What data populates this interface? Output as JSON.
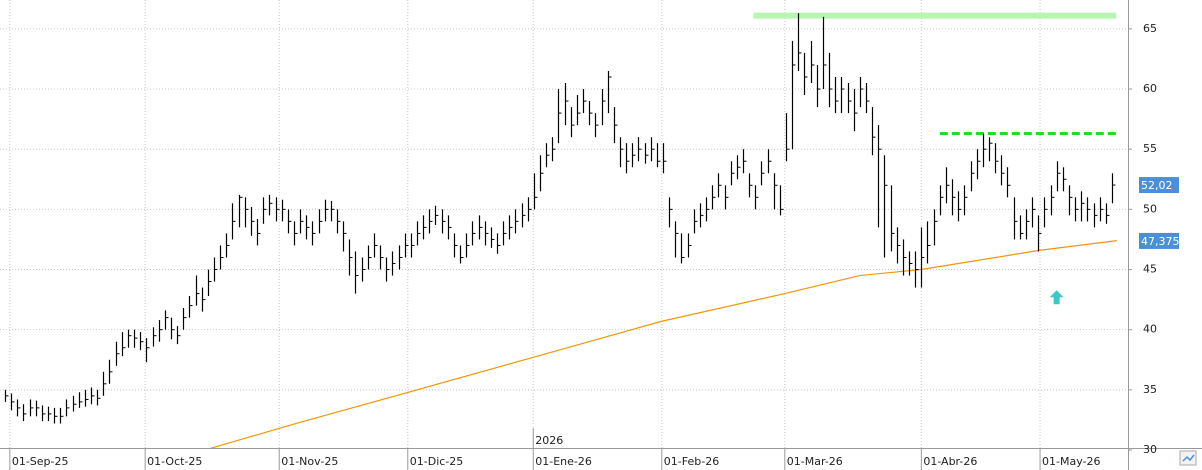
{
  "chart_data": {
    "type": "ohlc",
    "color": "#000000",
    "xlim": [
      -0.8,
      182.6
    ],
    "ylim": [
      30,
      67.4
    ],
    "yticks": [
      30,
      35,
      40,
      45,
      50,
      55,
      60,
      65
    ],
    "xticks": [
      {
        "value": 0.8,
        "label": "01-Sep-25"
      },
      {
        "value": 22.8,
        "label": "01-Oct-25"
      },
      {
        "value": 44.6,
        "label": "01-Nov-25"
      },
      {
        "value": 65.5,
        "label": "01-Dic-25"
      },
      {
        "value": 85.9,
        "label": "01-Ene-26"
      },
      {
        "value": 106.8,
        "label": "01-Feb-26"
      },
      {
        "value": 126.8,
        "label": "01-Mar-26"
      },
      {
        "value": 149,
        "label": "01-Abr-26"
      },
      {
        "value": 168.3,
        "label": "01-May-26"
      }
    ],
    "year_marker": {
      "value": 85.9,
      "label": "2026"
    },
    "grid": true,
    "highs": [
      35,
      34.7,
      34.2,
      33.8,
      34.2,
      34.1,
      33.7,
      33.6,
      33.5,
      33.5,
      34.2,
      34.5,
      34.8,
      35,
      35.2,
      35,
      36.5,
      37.5,
      39,
      39.8,
      40,
      40,
      39.8,
      39.3,
      40.2,
      40.8,
      41.6,
      41,
      40.3,
      41.8,
      42.8,
      44.5,
      43.5,
      45,
      46,
      47,
      48,
      50.5,
      51.2,
      51,
      50.2,
      49.2,
      51,
      51.2,
      51,
      50.8,
      50,
      49,
      50,
      49.5,
      49,
      50,
      50.8,
      50.7,
      50,
      49,
      47.5,
      46.5,
      46,
      47,
      48,
      47,
      46,
      46.5,
      47,
      48,
      48,
      49,
      49.5,
      50,
      50.3,
      50,
      49.5,
      48,
      47,
      48,
      49,
      49.5,
      49,
      48.5,
      48,
      49,
      49.5,
      50,
      50.5,
      51,
      53,
      54.5,
      55.5,
      56,
      60,
      60.5,
      58.5,
      59.5,
      60,
      59,
      58,
      60,
      61.5,
      58.5,
      56,
      55.5,
      55.5,
      56,
      55.5,
      56,
      55.5,
      55.5,
      51,
      49,
      48,
      48,
      50,
      50.5,
      51,
      52,
      53,
      52,
      54,
      54.5,
      55,
      53,
      52,
      54,
      55,
      53,
      52,
      58,
      64,
      66.3,
      63,
      64,
      62,
      66,
      63,
      61,
      61,
      60.5,
      60,
      61,
      60.5,
      58.5,
      57,
      54.5,
      52,
      48.5,
      47.5,
      46.5,
      46.5,
      48.5,
      49,
      50,
      52,
      53.5,
      52.5,
      51.5,
      52,
      54,
      55,
      56.3,
      56,
      55.5,
      54.5,
      53.5,
      51,
      49.5,
      50,
      51,
      49.5,
      51,
      52,
      54,
      53.5,
      52,
      51,
      51.5,
      51,
      50.5,
      51,
      50.5,
      53
    ],
    "lows": [
      34,
      33.3,
      32.8,
      32.4,
      32.8,
      32.8,
      32.4,
      32.4,
      32.2,
      32.2,
      32.8,
      33.2,
      33.5,
      33.6,
      33.8,
      33.7,
      34.5,
      35.5,
      37,
      37.8,
      38.5,
      38.5,
      38.3,
      37.3,
      38.6,
      39,
      40,
      39.2,
      38.8,
      40,
      41,
      42,
      41.5,
      42.8,
      44,
      45,
      46,
      47.5,
      48.5,
      48.5,
      47.8,
      47,
      48.8,
      49.5,
      49,
      49,
      48,
      47,
      48,
      47.5,
      47,
      48,
      49,
      49,
      48,
      46.5,
      44.5,
      43,
      44,
      45,
      46,
      45,
      44,
      44.5,
      45,
      46,
      46,
      47,
      47.5,
      48,
      48.7,
      48,
      47.5,
      46,
      45.5,
      46,
      47,
      47.5,
      47,
      46.8,
      46.3,
      47,
      47.5,
      48,
      48.5,
      49,
      50,
      51.5,
      53.5,
      54,
      55.5,
      57,
      56,
      57,
      58,
      57,
      56,
      57,
      58,
      55.5,
      53.5,
      53,
      53.5,
      54,
      53.8,
      54,
      53.5,
      53,
      48.5,
      46,
      45.5,
      46,
      48,
      48.5,
      49,
      50,
      51,
      50,
      52,
      52.5,
      53,
      51,
      50,
      52,
      53,
      50,
      49.5,
      54,
      55,
      61.5,
      59.5,
      60.5,
      58.5,
      60,
      58.5,
      58,
      58,
      58,
      56.5,
      58.5,
      58,
      54.5,
      48.5,
      46,
      46.5,
      45.5,
      44.5,
      44.5,
      43.5,
      43.5,
      45.5,
      47,
      49.5,
      50.5,
      49.5,
      49,
      49.5,
      51.5,
      52.5,
      53.5,
      54,
      53,
      52,
      51,
      47.5,
      47.5,
      47.5,
      48.5,
      46.5,
      48.5,
      49.5,
      51.5,
      51.5,
      49.5,
      49,
      49,
      49,
      48.5,
      49,
      48.8,
      50.5
    ],
    "closes": [
      34.5,
      34,
      33.5,
      33,
      33.5,
      33.5,
      33,
      33,
      32.8,
      32.8,
      33.5,
      33.8,
      34,
      34.2,
      34.5,
      34.3,
      35.5,
      36.5,
      38,
      38.5,
      39.5,
      39.3,
      39,
      38.5,
      39.5,
      40,
      41,
      40,
      39.5,
      41,
      42,
      43,
      42.5,
      44,
      45,
      46,
      47,
      49,
      51,
      50,
      49,
      48,
      50,
      50.5,
      50,
      50,
      49,
      48,
      49,
      48.5,
      48,
      49,
      50,
      50,
      49,
      48,
      46,
      44.5,
      45,
      46,
      47,
      46,
      45,
      45.5,
      46,
      47,
      47,
      48,
      48.5,
      49,
      49.5,
      49,
      48.5,
      47,
      46,
      47,
      48,
      48.5,
      48,
      47.5,
      47,
      48,
      48.5,
      49,
      49.5,
      50,
      51,
      53,
      54.5,
      55,
      58,
      59,
      57,
      58,
      59,
      58,
      57,
      59,
      61,
      57,
      55,
      54,
      54.5,
      55,
      54.5,
      55,
      54,
      54,
      50,
      48,
      46,
      47,
      49,
      49.5,
      50,
      51,
      52,
      51,
      53,
      53.5,
      54,
      52,
      51,
      53,
      54,
      52,
      50,
      55,
      62,
      63,
      61,
      62,
      60,
      62,
      60,
      59,
      60,
      59,
      58,
      60,
      59,
      56,
      55,
      52,
      48,
      47,
      46,
      45.5,
      45,
      46,
      47,
      49,
      51,
      52,
      51,
      50,
      51,
      53,
      54,
      55,
      55.5,
      54,
      53,
      52,
      49,
      48,
      49,
      50,
      48,
      50,
      51,
      53,
      52.5,
      51,
      50,
      50.5,
      50,
      49.5,
      50,
      49.5,
      52.02
    ],
    "moving_average": {
      "color": "#f0960a",
      "x": [
        32.5,
        48,
        64.2,
        85.9,
        106.8,
        126.8,
        139,
        149,
        168.3,
        180.8
      ],
      "values": [
        30,
        32.3,
        34.6,
        37.7,
        40.7,
        43,
        44.5,
        45,
        46.6,
        47.4
      ]
    },
    "levels": [
      {
        "value": 66.1,
        "x": [
          121.7,
          180.7
        ],
        "color": "#b8f5b0",
        "style": "solid"
      },
      {
        "value": 56.3,
        "x": [
          152,
          180.7
        ],
        "color": "#22dd22",
        "style": "dashed"
      }
    ],
    "price_labels": [
      {
        "value": 52.02,
        "label": "52,02",
        "color": "#4a90d9"
      },
      {
        "value": 47.375,
        "label": "47,375",
        "color": "#4a90d9"
      }
    ],
    "arrow": {
      "x": 171,
      "value": 42.7,
      "color": "#3cc8c8"
    }
  }
}
